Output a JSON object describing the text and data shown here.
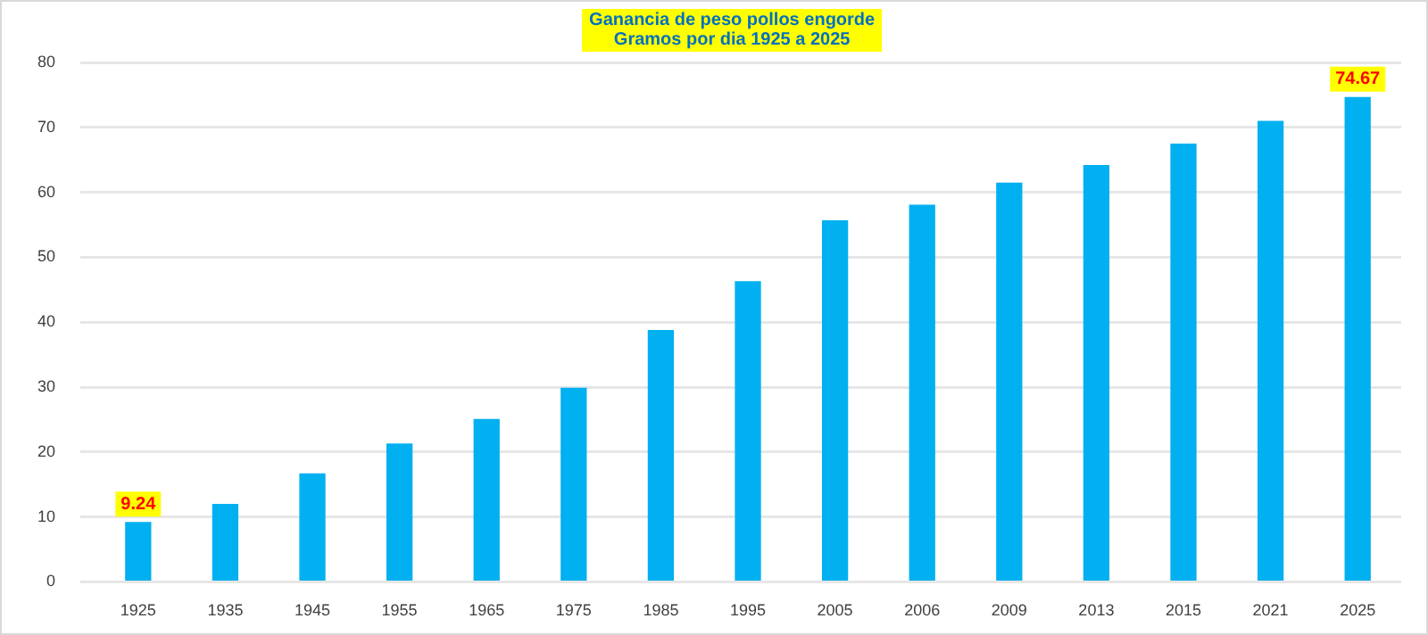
{
  "chart_data": {
    "type": "bar",
    "title": "Ganancia de peso pollos engorde",
    "subtitle": "Gramos por dia 1925 a 2025",
    "categories": [
      "1925",
      "1935",
      "1945",
      "1955",
      "1965",
      "1975",
      "1985",
      "1995",
      "2005",
      "2006",
      "2009",
      "2013",
      "2015",
      "2021",
      "2025"
    ],
    "values": [
      9.24,
      12.0,
      16.7,
      21.3,
      25.1,
      29.9,
      38.8,
      46.3,
      55.7,
      58.1,
      61.5,
      64.2,
      67.5,
      71.0,
      74.67
    ],
    "value_labels": [
      "9.24",
      null,
      null,
      null,
      null,
      null,
      null,
      null,
      null,
      null,
      null,
      null,
      null,
      null,
      "74.67"
    ],
    "color": "#00b0f0",
    "ylim": [
      0,
      80
    ],
    "yticks": [
      0,
      10,
      20,
      30,
      40,
      50,
      60,
      70,
      80
    ],
    "grid": "y",
    "legend": false
  }
}
